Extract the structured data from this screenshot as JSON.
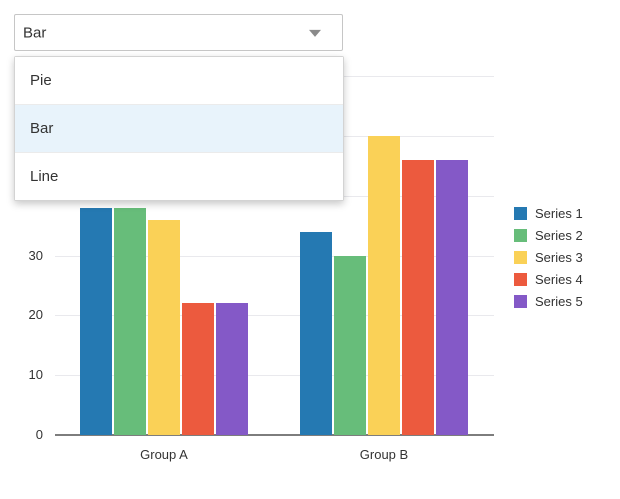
{
  "dropdown": {
    "selected": "Bar",
    "options": [
      {
        "label": "Pie",
        "selected": false
      },
      {
        "label": "Bar",
        "selected": true
      },
      {
        "label": "Line",
        "selected": false
      }
    ]
  },
  "chart_data": {
    "type": "bar",
    "categories": [
      "Group A",
      "Group B"
    ],
    "series": [
      {
        "name": "Series 1",
        "color": "#2579b2",
        "values": [
          38,
          34
        ]
      },
      {
        "name": "Series 2",
        "color": "#67bd7a",
        "values": [
          38,
          30
        ]
      },
      {
        "name": "Series 3",
        "color": "#fad157",
        "values": [
          36,
          50
        ]
      },
      {
        "name": "Series 4",
        "color": "#ec5a3e",
        "values": [
          22,
          46
        ]
      },
      {
        "name": "Series 5",
        "color": "#8459c7",
        "values": [
          22,
          46
        ]
      }
    ],
    "yticks": [
      0,
      10,
      20,
      30,
      40,
      50,
      60
    ],
    "ytick_labels_visible": [
      0,
      10,
      20,
      30
    ],
    "ylim": [
      0,
      60
    ],
    "xlabel": "",
    "ylabel": "",
    "grid": true,
    "legend_position": "right",
    "legend_labels": [
      "Series 1",
      "Series 2",
      "Series 3",
      "Series 4",
      "Series 5"
    ]
  }
}
